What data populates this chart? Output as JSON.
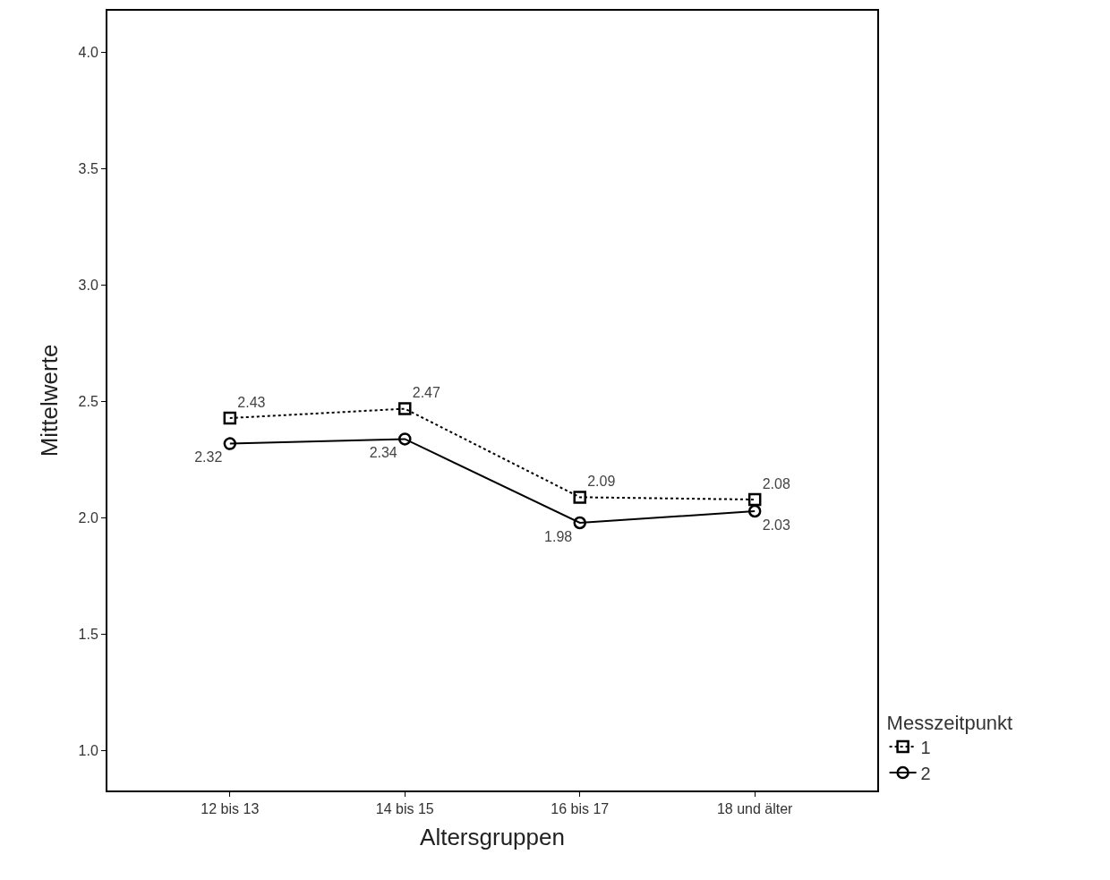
{
  "chart_data": {
    "type": "line",
    "xlabel": "Altersgruppen",
    "ylabel": "Mittelwerte",
    "legend_title": "Messzeitpunkt",
    "categories": [
      "12 bis 13",
      "14 bis 15",
      "16 bis 17",
      "18 und älter"
    ],
    "series": [
      {
        "name": "1",
        "color": "#000000",
        "values": [
          2.43,
          2.47,
          2.09,
          2.08
        ],
        "value_labels": [
          "2.43",
          "2.47",
          "2.09",
          "2.08"
        ],
        "marker": "square",
        "line_style": "dotted"
      },
      {
        "name": "2",
        "color": "#000000",
        "values": [
          2.32,
          2.34,
          1.98,
          2.03
        ],
        "value_labels": [
          "2.32",
          "2.34",
          "1.98",
          "2.03"
        ],
        "marker": "circle",
        "line_style": "solid"
      }
    ],
    "ylim": [
      0.83,
      4.18
    ],
    "yticks": [
      {
        "value": 1.0,
        "label": "1.0"
      },
      {
        "value": 1.5,
        "label": "1.5"
      },
      {
        "value": 2.0,
        "label": "2.0"
      },
      {
        "value": 2.5,
        "label": "2.5"
      },
      {
        "value": 3.0,
        "label": "3.0"
      },
      {
        "value": 3.5,
        "label": "3.5"
      },
      {
        "value": 4.0,
        "label": "4.0"
      }
    ],
    "legend": "bottom right"
  }
}
